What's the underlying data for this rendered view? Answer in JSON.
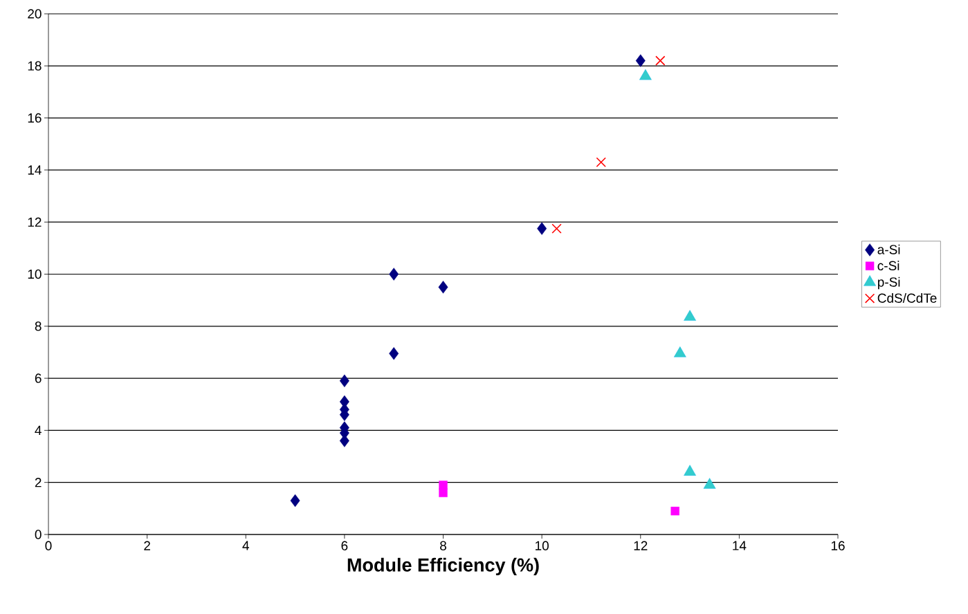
{
  "chart_data": {
    "type": "scatter",
    "xlabel": "Module Efficiency (%)",
    "xlim": [
      0,
      16
    ],
    "xticks": [
      0,
      2,
      4,
      6,
      8,
      10,
      12,
      14,
      16
    ],
    "ylim": [
      0,
      20
    ],
    "yticks": [
      0,
      2,
      4,
      6,
      8,
      10,
      12,
      14,
      16,
      18,
      20
    ],
    "grid": "y",
    "legend": "right",
    "series": [
      {
        "name": "a-Si",
        "color": "#000080",
        "marker": "diamond",
        "x": [
          5,
          6,
          6,
          6,
          6,
          6,
          6,
          6,
          7,
          7,
          8,
          10,
          12
        ],
        "values": [
          1.3,
          5.9,
          5.1,
          4.8,
          4.6,
          4.1,
          3.9,
          3.6,
          6.95,
          10,
          9.5,
          11.75,
          18.2
        ]
      },
      {
        "name": "c-Si",
        "color": "#ff00ff",
        "marker": "square",
        "x": [
          8,
          8,
          12.7
        ],
        "values": [
          1.9,
          1.6,
          0.9
        ]
      },
      {
        "name": "p-Si",
        "color": "#33cccc",
        "marker": "triangle",
        "x": [
          12.1,
          13,
          12.8,
          13,
          13.4
        ],
        "values": [
          17.6,
          8.35,
          6.95,
          2.4,
          1.9
        ]
      },
      {
        "name": "CdS/CdTe",
        "color": "#ff0000",
        "marker": "cross",
        "x": [
          12.4,
          11.2,
          10.3
        ],
        "values": [
          18.2,
          14.3,
          11.75
        ]
      }
    ]
  }
}
